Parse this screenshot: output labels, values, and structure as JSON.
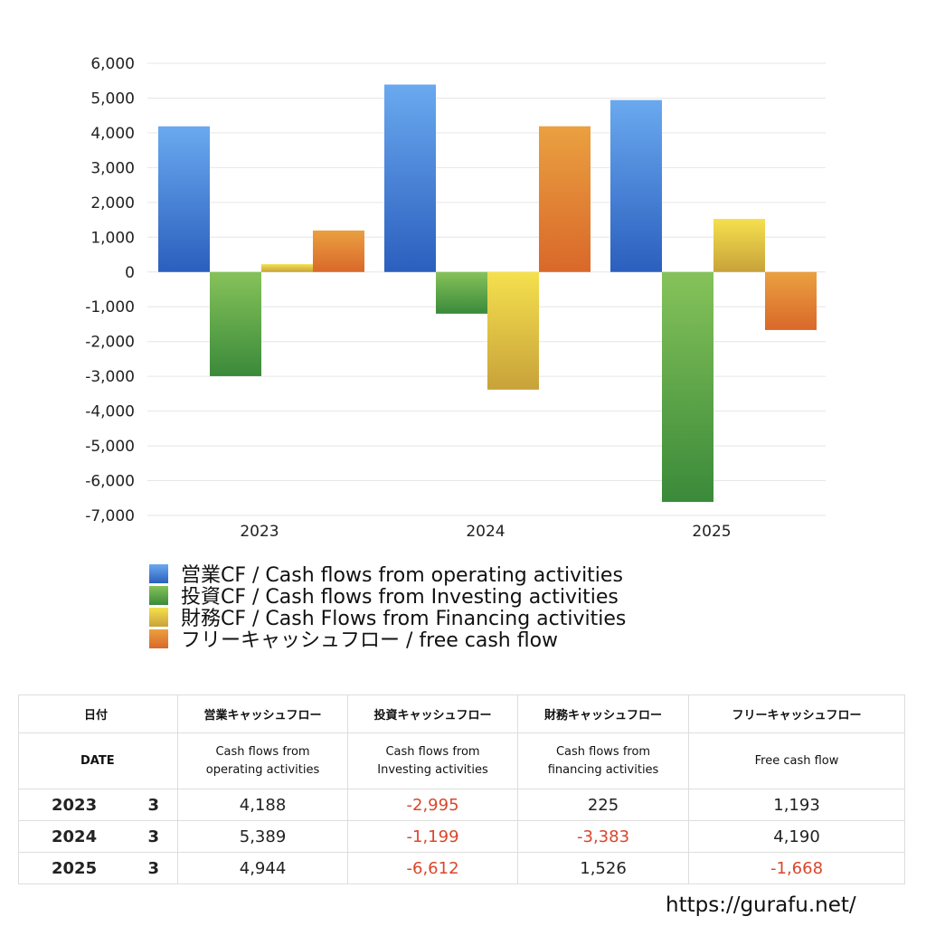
{
  "chart_data": {
    "type": "bar",
    "categories": [
      "2023",
      "2024",
      "2025"
    ],
    "series": [
      {
        "name": "営業CF / Cash flows from operating activities",
        "values": [
          4188,
          5389,
          4944
        ],
        "color_top": "#6aa9ef",
        "color_bottom": "#2b5fbe"
      },
      {
        "name": "投資CF / Cash flows from Investing activities",
        "values": [
          -2995,
          -1199,
          -6612
        ],
        "color_top": "#86c25a",
        "color_bottom": "#3a8a3a"
      },
      {
        "name": "財務CF / Cash Flows from Financing activities",
        "values": [
          225,
          -3383,
          1526
        ],
        "color_top": "#f5e04e",
        "color_bottom": "#c8a23a"
      },
      {
        "name": "フリーキャッシュフロー / free cash flow",
        "values": [
          1193,
          4190,
          -1668
        ],
        "color_top": "#eaa040",
        "color_bottom": "#d9682a"
      }
    ],
    "ylim": [
      -7000,
      6000
    ],
    "yticks": [
      6000,
      5000,
      4000,
      3000,
      2000,
      1000,
      0,
      -1000,
      -2000,
      -3000,
      -4000,
      -5000,
      -6000,
      -7000
    ],
    "ytick_labels": [
      "6,000",
      "5,000",
      "4,000",
      "3,000",
      "2,000",
      "1,000",
      "0",
      "-1,000",
      "-2,000",
      "-3,000",
      "-4,000",
      "-5,000",
      "-6,000",
      "-7,000"
    ],
    "grid": true,
    "legend_placement": "bottom-left"
  },
  "table": {
    "header_jp": {
      "date": "日付",
      "operating": "営業キャッシュフロー",
      "investing": "投資キャッシュフロー",
      "financing": "財務キャッシュフロー",
      "free": "フリーキャッシュフロー"
    },
    "header_en": {
      "date": "DATE",
      "operating_1": "Cash flows from",
      "operating_2": "operating activities",
      "investing_1": "Cash flows from",
      "investing_2": "Investing activities",
      "financing_1": "Cash flows from",
      "financing_2": "financing activities",
      "free": "Free cash flow"
    },
    "rows": [
      {
        "year": "2023",
        "month": "3",
        "operating": "4,188",
        "investing": "-2,995",
        "financing": "225",
        "free": "1,193"
      },
      {
        "year": "2024",
        "month": "3",
        "operating": "5,389",
        "investing": "-1,199",
        "financing": "-3,383",
        "free": "4,190"
      },
      {
        "year": "2025",
        "month": "3",
        "operating": "4,944",
        "investing": "-6,612",
        "financing": "1,526",
        "free": "-1,668"
      }
    ],
    "negative_color": "#d9472b"
  },
  "footer": {
    "url": "https://gurafu.net/"
  }
}
